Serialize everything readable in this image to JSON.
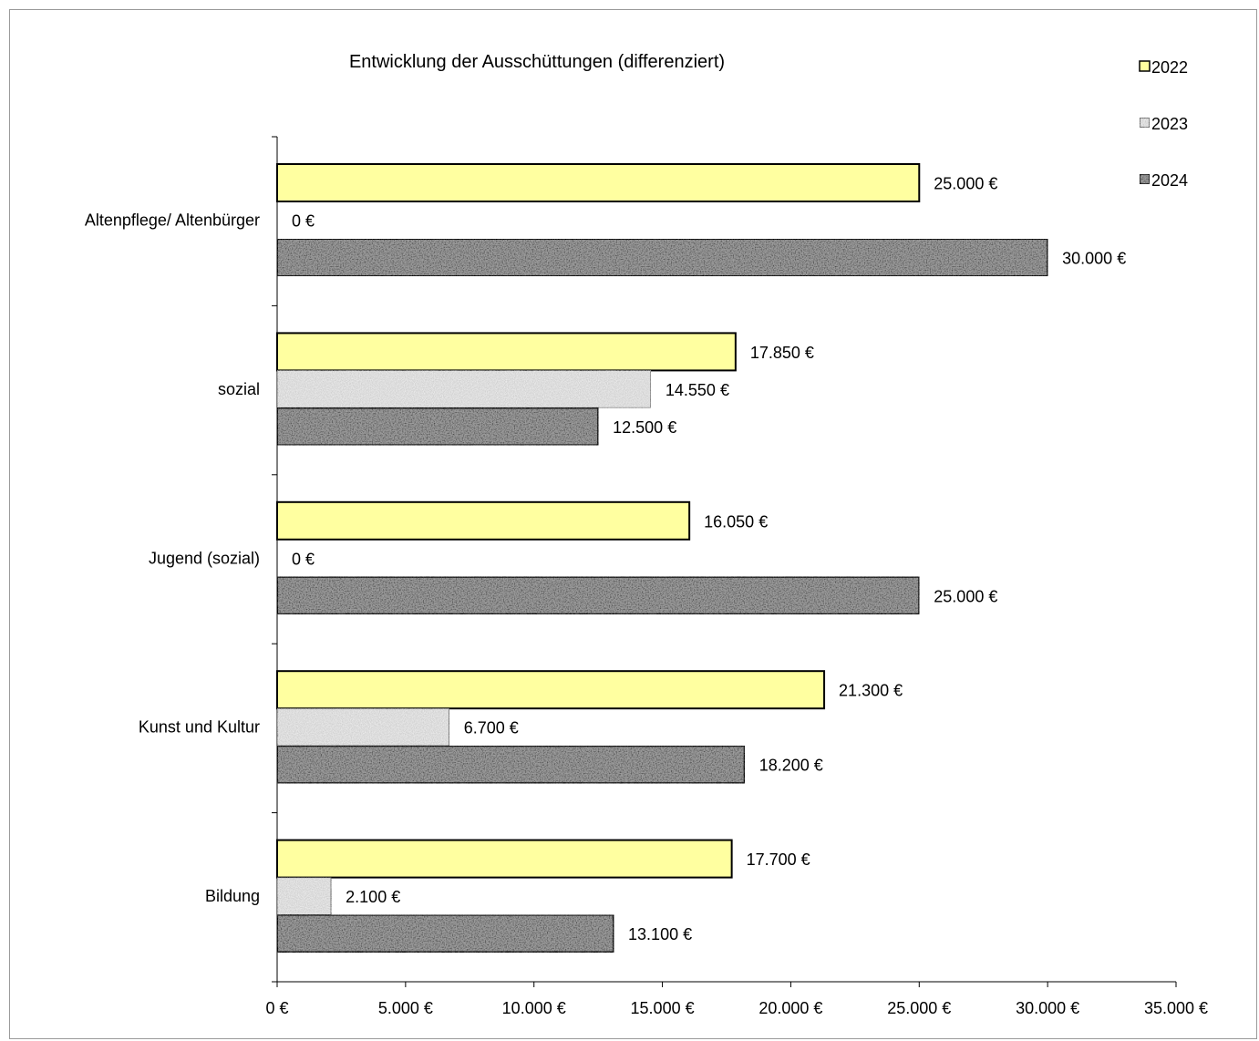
{
  "chart_data": {
    "type": "bar",
    "orientation": "horizontal",
    "title": "Entwicklung der Ausschüttungen (differenziert)",
    "categories": [
      "Altenpflege/ Altenbürger",
      "sozial",
      "Jugend (sozial)",
      "Kunst und Kultur",
      "Bildung"
    ],
    "series": [
      {
        "name": "2022",
        "values": [
          25000,
          17850,
          16050,
          21300,
          17700
        ],
        "labels": [
          "25.000 €",
          "17.850 €",
          "16.050 €",
          "21.300 €",
          "17.700 €"
        ],
        "color": "#ffffa0",
        "pattern": "none"
      },
      {
        "name": "2023",
        "values": [
          0,
          14550,
          0,
          6700,
          2100
        ],
        "labels": [
          "0 €",
          "14.550 €",
          "0 €",
          "6.700 €",
          "2.100 €"
        ],
        "color": "#eeeeee",
        "pattern": "light-texture"
      },
      {
        "name": "2024",
        "values": [
          30000,
          12500,
          25000,
          18200,
          13100
        ],
        "labels": [
          "30.000 €",
          "12.500 €",
          "25.000 €",
          "18.200 €",
          "13.100 €"
        ],
        "color": "#9c9c9c",
        "pattern": "dark-texture"
      }
    ],
    "xlim": [
      0,
      35000
    ],
    "x_ticks": [
      0,
      5000,
      10000,
      15000,
      20000,
      25000,
      30000,
      35000
    ],
    "x_tick_labels": [
      "0 €",
      "5.000 €",
      "10.000 €",
      "15.000 €",
      "20.000 €",
      "25.000 €",
      "30.000 €",
      "35.000 €"
    ],
    "xlabel": "",
    "ylabel": "",
    "grid": false,
    "legend_position": "top-right",
    "data_labels": true
  }
}
